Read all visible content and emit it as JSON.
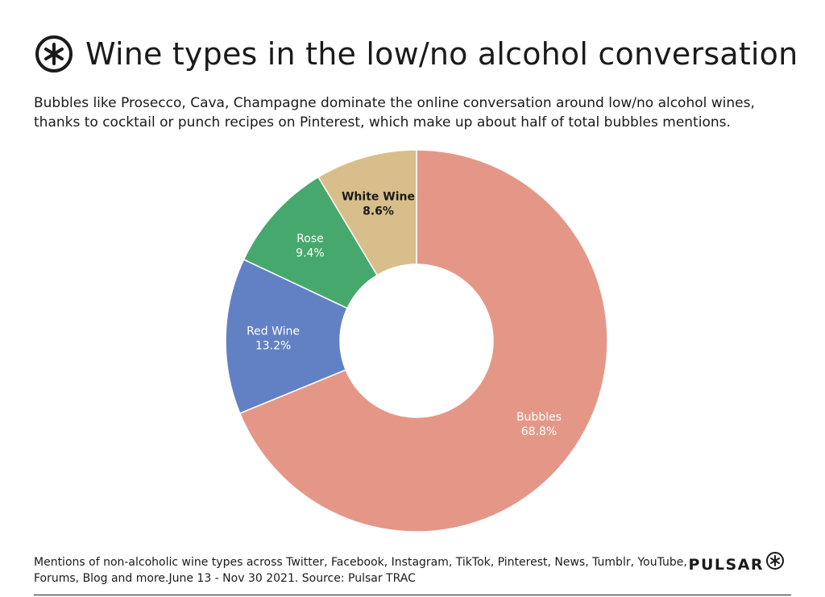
{
  "header": {
    "title": "Wine types in the low/no alcohol conversation",
    "subtitle": "Bubbles like Prosecco, Cava, Champagne dominate the online conversation around low/no alcohol wines, thanks to cocktail or punch recipes on Pinterest, which make up about half of total bubbles mentions.",
    "logo_icon": "asterisk-circle-icon"
  },
  "chart_data": {
    "type": "pie",
    "style": "donut",
    "title": "Wine types in the low/no alcohol conversation",
    "slices": [
      {
        "label": "Bubbles",
        "value": 68.8,
        "value_label": "68.8%",
        "color": "#E59787",
        "text_color": "#ffffff"
      },
      {
        "label": "Red Wine",
        "value": 13.2,
        "value_label": "13.2%",
        "color": "#6281C4",
        "text_color": "#ffffff"
      },
      {
        "label": "Rose",
        "value": 9.4,
        "value_label": "9.4%",
        "color": "#46A86D",
        "text_color": "#ffffff"
      },
      {
        "label": "White Wine",
        "value": 8.6,
        "value_label": "8.6%",
        "color": "#D8BE8A",
        "text_color": "#1a1a1a"
      }
    ],
    "start": "top",
    "direction": "clockwise"
  },
  "footer": {
    "note": "Mentions of non-alcoholic wine types across Twitter, Facebook, Instagram, TikTok, Pinterest, News, Tumblr, YouTube, Forums, Blog and more.June 13 - Nov 30 2021. Source: Pulsar TRAC",
    "brand": "PULSAR",
    "brand_icon": "asterisk-circle-icon"
  }
}
